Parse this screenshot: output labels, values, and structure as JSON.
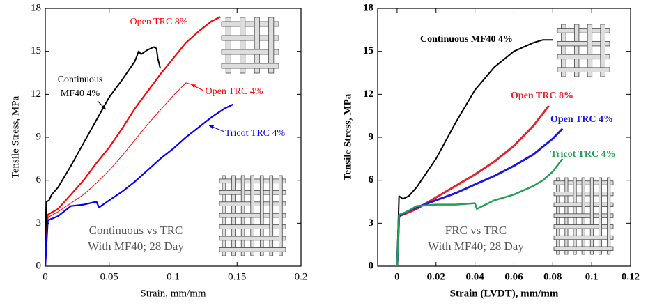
{
  "chart_data": [
    {
      "type": "line",
      "x_label": "Strain, mm/mm",
      "y_label": "Tensile Stress, MPa",
      "annotation": [
        "Continuous vs TRC",
        "With MF40; 28 Day"
      ],
      "xlim": [
        0,
        0.2
      ],
      "xticks": [
        0,
        0.05,
        0.1,
        0.15,
        0.2
      ],
      "ylim": [
        0,
        18
      ],
      "yticks": [
        0,
        3,
        6,
        9,
        12,
        15,
        18
      ],
      "series": [
        {
          "name": "Continuous MF40 4%",
          "color": "#000000",
          "x": [
            0,
            0.001,
            0.003,
            0.005,
            0.01,
            0.02,
            0.03,
            0.04,
            0.05,
            0.06,
            0.07,
            0.073,
            0.075,
            0.08,
            0.085,
            0.087,
            0.088,
            0.09
          ],
          "values": [
            0,
            4.5,
            4.6,
            5,
            5.5,
            7,
            8.6,
            10.2,
            11.8,
            13,
            14.3,
            15,
            14.8,
            15.1,
            15.3,
            15.2,
            14.5,
            13.8
          ]
        },
        {
          "name": "Open TRC 8%",
          "color": "#ff0000",
          "x": [
            0,
            0.002,
            0.01,
            0.02,
            0.03,
            0.04,
            0.05,
            0.06,
            0.07,
            0.08,
            0.09,
            0.1,
            0.11,
            0.12,
            0.13,
            0.137
          ],
          "values": [
            0,
            3.6,
            4,
            5,
            6,
            7.2,
            8.3,
            9.6,
            11,
            12.2,
            13.4,
            14.5,
            15.6,
            16.4,
            17.1,
            17.4
          ]
        },
        {
          "name": "Open TRC 4%",
          "color": "#ff0000",
          "x": [
            0,
            0.002,
            0.01,
            0.02,
            0.03,
            0.04,
            0.05,
            0.06,
            0.07,
            0.08,
            0.09,
            0.1,
            0.11,
            0.114
          ],
          "values": [
            0,
            3.4,
            3.8,
            4.4,
            5,
            5.8,
            6.7,
            7.7,
            8.8,
            9.9,
            10.9,
            11.9,
            12.8,
            12.7
          ]
        },
        {
          "name": "Tricot TRC 4%",
          "color": "#0000ff",
          "x": [
            0,
            0.002,
            0.01,
            0.02,
            0.03,
            0.04,
            0.042,
            0.05,
            0.06,
            0.07,
            0.08,
            0.09,
            0.1,
            0.11,
            0.12,
            0.13,
            0.14,
            0.147
          ],
          "values": [
            0,
            3.2,
            3.5,
            4.2,
            4.3,
            4.5,
            4.1,
            4.6,
            5.2,
            5.9,
            6.7,
            7.5,
            8.2,
            9,
            9.7,
            10.4,
            11,
            11.3
          ]
        }
      ]
    },
    {
      "type": "line",
      "x_label": "Strain (LVDT), mm/mm",
      "y_label": "Tensile Stress, MPa",
      "annotation": [
        "FRC vs TRC",
        "With MF40; 28 Day"
      ],
      "xlim": [
        -0.01,
        0.12
      ],
      "xticks": [
        0,
        0.02,
        0.04,
        0.06,
        0.08,
        0.1,
        0.12
      ],
      "ylim": [
        0,
        18
      ],
      "yticks": [
        0,
        3,
        6,
        9,
        12,
        15,
        18
      ],
      "series": [
        {
          "name": "Continuous MF40 4%",
          "color": "#000000",
          "x": [
            0,
            0.001,
            0.003,
            0.006,
            0.01,
            0.02,
            0.03,
            0.04,
            0.05,
            0.06,
            0.07,
            0.075,
            0.08
          ],
          "values": [
            0,
            4.9,
            4.7,
            4.9,
            5.5,
            7.5,
            10,
            12.3,
            13.9,
            15,
            15.6,
            15.8,
            15.8
          ]
        },
        {
          "name": "Open TRC 8%",
          "color": "#e8202a",
          "x": [
            0,
            0.001,
            0.005,
            0.01,
            0.02,
            0.03,
            0.04,
            0.05,
            0.06,
            0.07,
            0.078
          ],
          "values": [
            0,
            3.5,
            3.7,
            4,
            4.8,
            5.6,
            6.4,
            7.3,
            8.4,
            9.8,
            11.2
          ]
        },
        {
          "name": "Open TRC 4%",
          "color": "#1a1adc",
          "x": [
            0,
            0.001,
            0.005,
            0.01,
            0.02,
            0.03,
            0.04,
            0.05,
            0.06,
            0.07,
            0.08,
            0.085
          ],
          "values": [
            0,
            3.5,
            3.8,
            4.1,
            4.6,
            5.1,
            5.7,
            6.3,
            7,
            7.8,
            8.9,
            9.6
          ]
        },
        {
          "name": "Tricot TRC 4%",
          "color": "#22a050",
          "x": [
            0,
            0.001,
            0.005,
            0.01,
            0.02,
            0.03,
            0.04,
            0.041,
            0.05,
            0.06,
            0.07,
            0.075,
            0.08,
            0.085
          ],
          "values": [
            0,
            3.6,
            3.8,
            4.2,
            4.3,
            4.3,
            4.4,
            4,
            4.6,
            5,
            5.6,
            6,
            6.6,
            7.5
          ]
        }
      ]
    }
  ]
}
